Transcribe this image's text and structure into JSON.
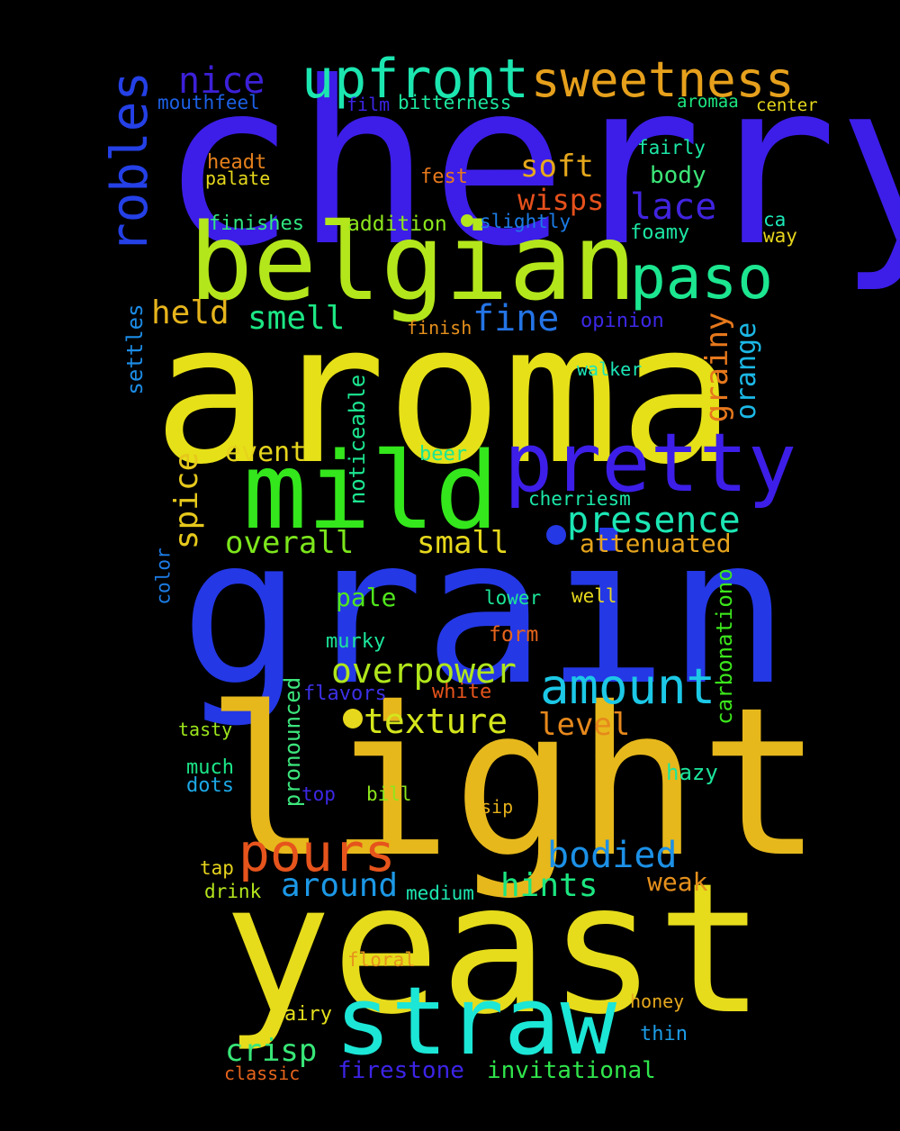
{
  "words": [
    {
      "text": "cherry",
      "color": "#3c1ee8"
    },
    {
      "text": "aroma",
      "color": "#e6e018"
    },
    {
      "text": "grain",
      "color": "#2438e6"
    },
    {
      "text": "light",
      "color": "#e6b81c"
    },
    {
      "text": "yeast",
      "color": "#e6dc1c"
    },
    {
      "text": "belgian",
      "color": "#b4e61c"
    },
    {
      "text": "mild",
      "color": "#34e61c"
    },
    {
      "text": "straw",
      "color": "#1ce6d6"
    },
    {
      "text": "pretty",
      "color": "#3c1ee8"
    },
    {
      "text": "paso",
      "color": "#1ce690"
    },
    {
      "text": "upfront",
      "color": "#1ce6b0"
    },
    {
      "text": "sweetness",
      "color": "#e6a01c"
    },
    {
      "text": "robles",
      "color": "#2440e6"
    },
    {
      "text": "pours",
      "color": "#e6541c"
    },
    {
      "text": "amount",
      "color": "#1cc8e6"
    },
    {
      "text": "presence",
      "color": "#1ce6b4"
    },
    {
      "text": "bodied",
      "color": "#1c90e6"
    },
    {
      "text": "nice",
      "color": "#3c20d8"
    },
    {
      "text": "lace",
      "color": "#4024e0"
    },
    {
      "text": "overpower",
      "color": "#b0e61c"
    },
    {
      "text": "texture",
      "color": "#d4e61c"
    },
    {
      "text": "smell",
      "color": "#1ce684"
    },
    {
      "text": "fine",
      "color": "#2474e6"
    },
    {
      "text": "held",
      "color": "#e6b41c"
    },
    {
      "text": "spice",
      "color": "#e6c81c"
    },
    {
      "text": "overall",
      "color": "#7ce61c"
    },
    {
      "text": "small",
      "color": "#e6d81c"
    },
    {
      "text": "soft",
      "color": "#e6a81c"
    },
    {
      "text": "wisps",
      "color": "#e6501c"
    },
    {
      "text": "grainy",
      "color": "#e6781c"
    },
    {
      "text": "orange",
      "color": "#1cb8e6"
    },
    {
      "text": "hints",
      "color": "#1ce680"
    },
    {
      "text": "around",
      "color": "#1c98e6"
    },
    {
      "text": "crisp",
      "color": "#38e678"
    },
    {
      "text": "level",
      "color": "#e6881c"
    },
    {
      "text": "event",
      "color": "#e6d41c"
    },
    {
      "text": "attenuated",
      "color": "#e6a41c"
    },
    {
      "text": "carbonationo",
      "color": "#3ce61c"
    },
    {
      "text": "noticeable",
      "color": "#1ce690"
    },
    {
      "text": "pronounced",
      "color": "#3ce67c"
    },
    {
      "text": "settles",
      "color": "#1c8ce6"
    },
    {
      "text": "firestone",
      "color": "#3c24e6"
    },
    {
      "text": "invitational",
      "color": "#30e64c"
    },
    {
      "text": "pale",
      "color": "#50e61c"
    },
    {
      "text": "weak",
      "color": "#e6901c"
    },
    {
      "text": "hazy",
      "color": "#1ce69c"
    },
    {
      "text": "body",
      "color": "#3ce678"
    },
    {
      "text": "foamy",
      "color": "#1ce6a4"
    },
    {
      "text": "mouthfeel",
      "color": "#1c60e6"
    },
    {
      "text": "bitterness",
      "color": "#1ce69c"
    },
    {
      "text": "film",
      "color": "#3c24e6"
    },
    {
      "text": "aromaa",
      "color": "#1ce680"
    },
    {
      "text": "center",
      "color": "#e6d81c"
    },
    {
      "text": "fairly",
      "color": "#1ce6a4"
    },
    {
      "text": "headt",
      "color": "#e6801c"
    },
    {
      "text": "palate",
      "color": "#e6d81c"
    },
    {
      "text": "fest",
      "color": "#e6781c"
    },
    {
      "text": "finishes",
      "color": "#30e680"
    },
    {
      "text": "addition",
      "color": "#8ce61c"
    },
    {
      "text": "slightly",
      "color": "#1c7ce6"
    },
    {
      "text": "ca",
      "color": "#1ce6b8"
    },
    {
      "text": "way",
      "color": "#e6d41c"
    },
    {
      "text": "finish",
      "color": "#e6901c"
    },
    {
      "text": "opinion",
      "color": "#3c28e6"
    },
    {
      "text": "walker",
      "color": "#1ce6b8"
    },
    {
      "text": "beer",
      "color": "#1ce690"
    },
    {
      "text": "cherriesm",
      "color": "#1ce6a8"
    },
    {
      "text": "color",
      "color": "#1c7ce6"
    },
    {
      "text": "lower",
      "color": "#1ce698"
    },
    {
      "text": "well",
      "color": "#e6d81c"
    },
    {
      "text": "form",
      "color": "#e6641c"
    },
    {
      "text": "murky",
      "color": "#1ce69c"
    },
    {
      "text": "flavors",
      "color": "#3c30e6"
    },
    {
      "text": "white",
      "color": "#e6541c"
    },
    {
      "text": "tasty",
      "color": "#9ce61c"
    },
    {
      "text": "much",
      "color": "#1ce688"
    },
    {
      "text": "dots",
      "color": "#1ca8e6"
    },
    {
      "text": "top",
      "color": "#3c28e6"
    },
    {
      "text": "bill",
      "color": "#8ce61c"
    },
    {
      "text": "sip",
      "color": "#e6b01c"
    },
    {
      "text": "tap",
      "color": "#e6d41c"
    },
    {
      "text": "drink",
      "color": "#b4e61c"
    },
    {
      "text": "medium",
      "color": "#1ce6b0"
    },
    {
      "text": "floral",
      "color": "#e6941c"
    },
    {
      "text": "honey",
      "color": "#e6a81c"
    },
    {
      "text": "airy",
      "color": "#e6e01c"
    },
    {
      "text": "thin",
      "color": "#1c9ce6"
    },
    {
      "text": "classic",
      "color": "#e6641c"
    }
  ],
  "dots": [
    {
      "color": "#b4e61c"
    },
    {
      "color": "#2438e6"
    },
    {
      "color": "#e6d81c"
    }
  ]
}
